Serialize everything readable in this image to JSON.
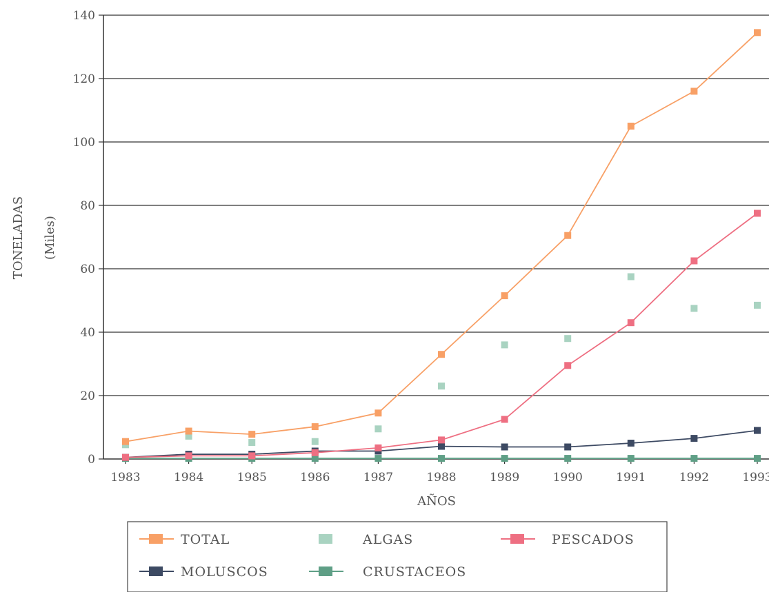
{
  "chart_data": {
    "type": "line",
    "ylabel": "TONELADAS",
    "ylabel_sub": "(Miles)",
    "xlabel": "AÑOS",
    "categories": [
      "1983",
      "1984",
      "1985",
      "1986",
      "1987",
      "1988",
      "1989",
      "1990",
      "1991",
      "1992",
      "1993"
    ],
    "ylim": [
      0,
      140
    ],
    "yticks": [
      0,
      20,
      40,
      60,
      80,
      100,
      120,
      140
    ],
    "grid": true,
    "legend_position": "bottom",
    "series": [
      {
        "name": "TOTAL",
        "color": "#f8a066",
        "line": true,
        "values": [
          5.5,
          8.8,
          7.8,
          10.2,
          14.5,
          33,
          51.5,
          70.5,
          105,
          116,
          134.5
        ]
      },
      {
        "name": "ALGAS",
        "color": "#a9d3c1",
        "line": false,
        "values": [
          4.5,
          7.2,
          5.2,
          5.5,
          9.5,
          23,
          36,
          38,
          57.5,
          47.5,
          48.5
        ]
      },
      {
        "name": "PESCADOS",
        "color": "#ee6f82",
        "line": true,
        "values": [
          0.5,
          1,
          1,
          2,
          3.5,
          6,
          12.5,
          29.5,
          43,
          62.5,
          77.5
        ]
      },
      {
        "name": "MOLUSCOS",
        "color": "#3d4a63",
        "line": true,
        "values": [
          0.5,
          1.5,
          1.5,
          2.5,
          2.5,
          4,
          3.8,
          3.8,
          5,
          6.5,
          9
        ]
      },
      {
        "name": "CRUSTACEOS",
        "color": "#5f9f86",
        "line": true,
        "values": [
          0.2,
          0.2,
          0.2,
          0.2,
          0.2,
          0.2,
          0.2,
          0.2,
          0.2,
          0.2,
          0.2
        ]
      }
    ]
  }
}
